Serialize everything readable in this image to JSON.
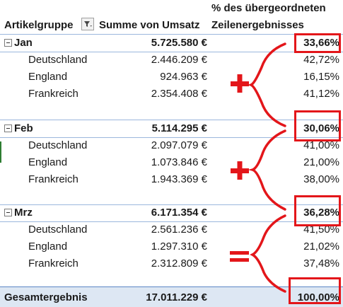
{
  "header": {
    "pct_title_line1": "% des übergeordneten",
    "col_group": "Artikelgruppe",
    "col_sum": "Summe von Umsatz",
    "col_pct": "Zeilenergebnisses"
  },
  "groups": [
    {
      "name": "Jan",
      "sum": "5.725.580 €",
      "pct": "33,66%",
      "rows": [
        {
          "name": "Deutschland",
          "sum": "2.446.209 €",
          "pct": "42,72%"
        },
        {
          "name": "England",
          "sum": "924.963 €",
          "pct": "16,15%"
        },
        {
          "name": "Frankreich",
          "sum": "2.354.408 €",
          "pct": "41,12%"
        }
      ]
    },
    {
      "name": "Feb",
      "sum": "5.114.295 €",
      "pct": "30,06%",
      "rows": [
        {
          "name": "Deutschland",
          "sum": "2.097.079 €",
          "pct": "41,00%"
        },
        {
          "name": "England",
          "sum": "1.073.846 €",
          "pct": "21,00%"
        },
        {
          "name": "Frankreich",
          "sum": "1.943.369 €",
          "pct": "38,00%"
        }
      ]
    },
    {
      "name": "Mrz",
      "sum": "6.171.354 €",
      "pct": "36,28%",
      "rows": [
        {
          "name": "Deutschland",
          "sum": "2.561.236 €",
          "pct": "41,50%"
        },
        {
          "name": "England",
          "sum": "1.297.310 €",
          "pct": "21,02%"
        },
        {
          "name": "Frankreich",
          "sum": "2.312.809 €",
          "pct": "37,48%"
        }
      ]
    }
  ],
  "total": {
    "name": "Gesamtergebnis",
    "sum": "17.011.229 €",
    "pct": "100,00%"
  },
  "annotations": {
    "color": "#e3161a",
    "operators": [
      "plus",
      "plus",
      "equals"
    ]
  },
  "colors": {
    "border": "#9bb7dd",
    "total_bg": "#dde7f3"
  }
}
